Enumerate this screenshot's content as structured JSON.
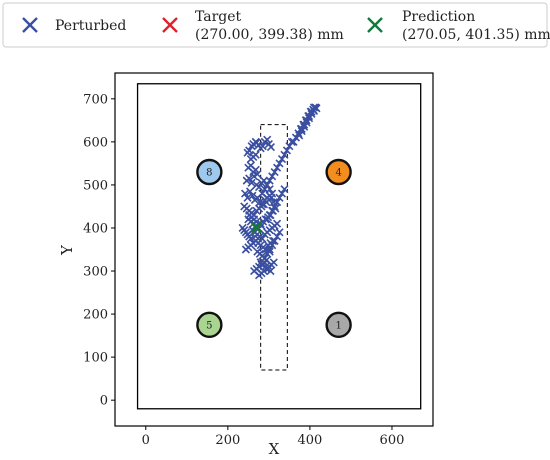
{
  "chart_data": {
    "type": "scatter",
    "xlabel": "X",
    "ylabel": "Y",
    "xlim": [
      -75,
      700
    ],
    "ylim": [
      -60,
      760
    ],
    "xticks": [
      "0",
      "200",
      "400",
      "600"
    ],
    "yticks": [
      "0",
      "100",
      "200",
      "300",
      "400",
      "500",
      "600",
      "700"
    ],
    "legend": {
      "placement": "top",
      "entries": [
        {
          "key": "perturbed",
          "label_line1": "Perturbed",
          "label_line2": "",
          "color": "#3a4fa0"
        },
        {
          "key": "target",
          "label_line1": "Target",
          "label_line2": "(270.00, 399.38) mm",
          "color": "#e0202a"
        },
        {
          "key": "prediction",
          "label_line1": "Prediction",
          "label_line2": "(270.05, 401.35) mm",
          "color": "#0e7a3c"
        }
      ]
    },
    "arena": {
      "x_range": [
        -20,
        670
      ],
      "y_range": [
        -20,
        735
      ]
    },
    "dashed_rect": {
      "x_range": [
        280,
        345
      ],
      "y_range": [
        70,
        640
      ]
    },
    "targets_markers": [
      {
        "label": "8",
        "x": 155,
        "y": 530,
        "color": "#9fc8ee"
      },
      {
        "label": "4",
        "x": 470,
        "y": 530,
        "color": "#f28e1f"
      },
      {
        "label": "5",
        "x": 155,
        "y": 175,
        "color": "#a9d590"
      },
      {
        "label": "1",
        "x": 470,
        "y": 175,
        "color": "#a8a8a8"
      }
    ],
    "target_point": {
      "x": 270.0,
      "y": 399.38
    },
    "prediction_point": {
      "x": 270.05,
      "y": 401.35
    },
    "series": [
      {
        "name": "Perturbed",
        "color": "#3a4fa0",
        "x": [
          248,
          252,
          258,
          262,
          268,
          270,
          275,
          280,
          285,
          290,
          296,
          300,
          305,
          256,
          262,
          268,
          250,
          256,
          262,
          268,
          272,
          246,
          252,
          258,
          264,
          270,
          276,
          282,
          288,
          295,
          302,
          242,
          248,
          254,
          260,
          266,
          272,
          278,
          284,
          290,
          296,
          302,
          308,
          240,
          246,
          252,
          258,
          264,
          270,
          276,
          282,
          288,
          294,
          300,
          306,
          312,
          250,
          256,
          262,
          268,
          274,
          280,
          286,
          292,
          298,
          304,
          310,
          316,
          260,
          266,
          272,
          278,
          284,
          290,
          296,
          302,
          308,
          314,
          320,
          268,
          274,
          280,
          286,
          292,
          298,
          304,
          310,
          272,
          278,
          284,
          290,
          296,
          302,
          280,
          286,
          292,
          298,
          304,
          276,
          282,
          288,
          294,
          300,
          306,
          312,
          284,
          290,
          296,
          302,
          308,
          314,
          320,
          326,
          332,
          338,
          344,
          350,
          356,
          290,
          296,
          302,
          308,
          314,
          320,
          326,
          296,
          302,
          308,
          314,
          320,
          326,
          332,
          338,
          360,
          366,
          372,
          378,
          384,
          390,
          396,
          402,
          408,
          414,
          374,
          380,
          386,
          392,
          398,
          404,
          410,
          416,
          380,
          386,
          392,
          398,
          404,
          410,
          236,
          240,
          244,
          248,
          252,
          256,
          244,
          250,
          256,
          262,
          268,
          274,
          252,
          258,
          264,
          270,
          276,
          282,
          264,
          270,
          276,
          282,
          288,
          294
        ],
        "y": [
          575,
          580,
          590,
          595,
          600,
          598,
          592,
          585,
          590,
          600,
          605,
          595,
          588,
          560,
          565,
          570,
          540,
          545,
          530,
          535,
          525,
          510,
          515,
          505,
          520,
          500,
          495,
          505,
          510,
          500,
          490,
          480,
          470,
          485,
          475,
          465,
          470,
          460,
          455,
          465,
          470,
          475,
          480,
          450,
          445,
          440,
          435,
          430,
          440,
          445,
          450,
          455,
          460,
          465,
          470,
          460,
          420,
          415,
          410,
          405,
          400,
          410,
          415,
          420,
          425,
          430,
          440,
          445,
          395,
          390,
          385,
          380,
          375,
          385,
          390,
          395,
          400,
          405,
          410,
          370,
          365,
          360,
          355,
          350,
          360,
          365,
          370,
          345,
          340,
          335,
          330,
          340,
          345,
          320,
          315,
          310,
          305,
          300,
          290,
          295,
          300,
          305,
          310,
          315,
          320,
          480,
          490,
          500,
          510,
          520,
          530,
          540,
          550,
          560,
          570,
          580,
          590,
          600,
          330,
          340,
          350,
          360,
          370,
          380,
          390,
          420,
          430,
          440,
          450,
          460,
          470,
          480,
          490,
          600,
          610,
          620,
          630,
          640,
          650,
          660,
          670,
          675,
          680,
          615,
          625,
          635,
          645,
          655,
          665,
          672,
          678,
          630,
          640,
          650,
          660,
          670,
          680,
          400,
          395,
          390,
          385,
          380,
          375,
          350,
          355,
          360,
          365,
          370,
          375,
          430,
          425,
          420,
          415,
          410,
          405,
          300,
          305,
          310,
          315,
          320,
          325
        ]
      }
    ]
  }
}
